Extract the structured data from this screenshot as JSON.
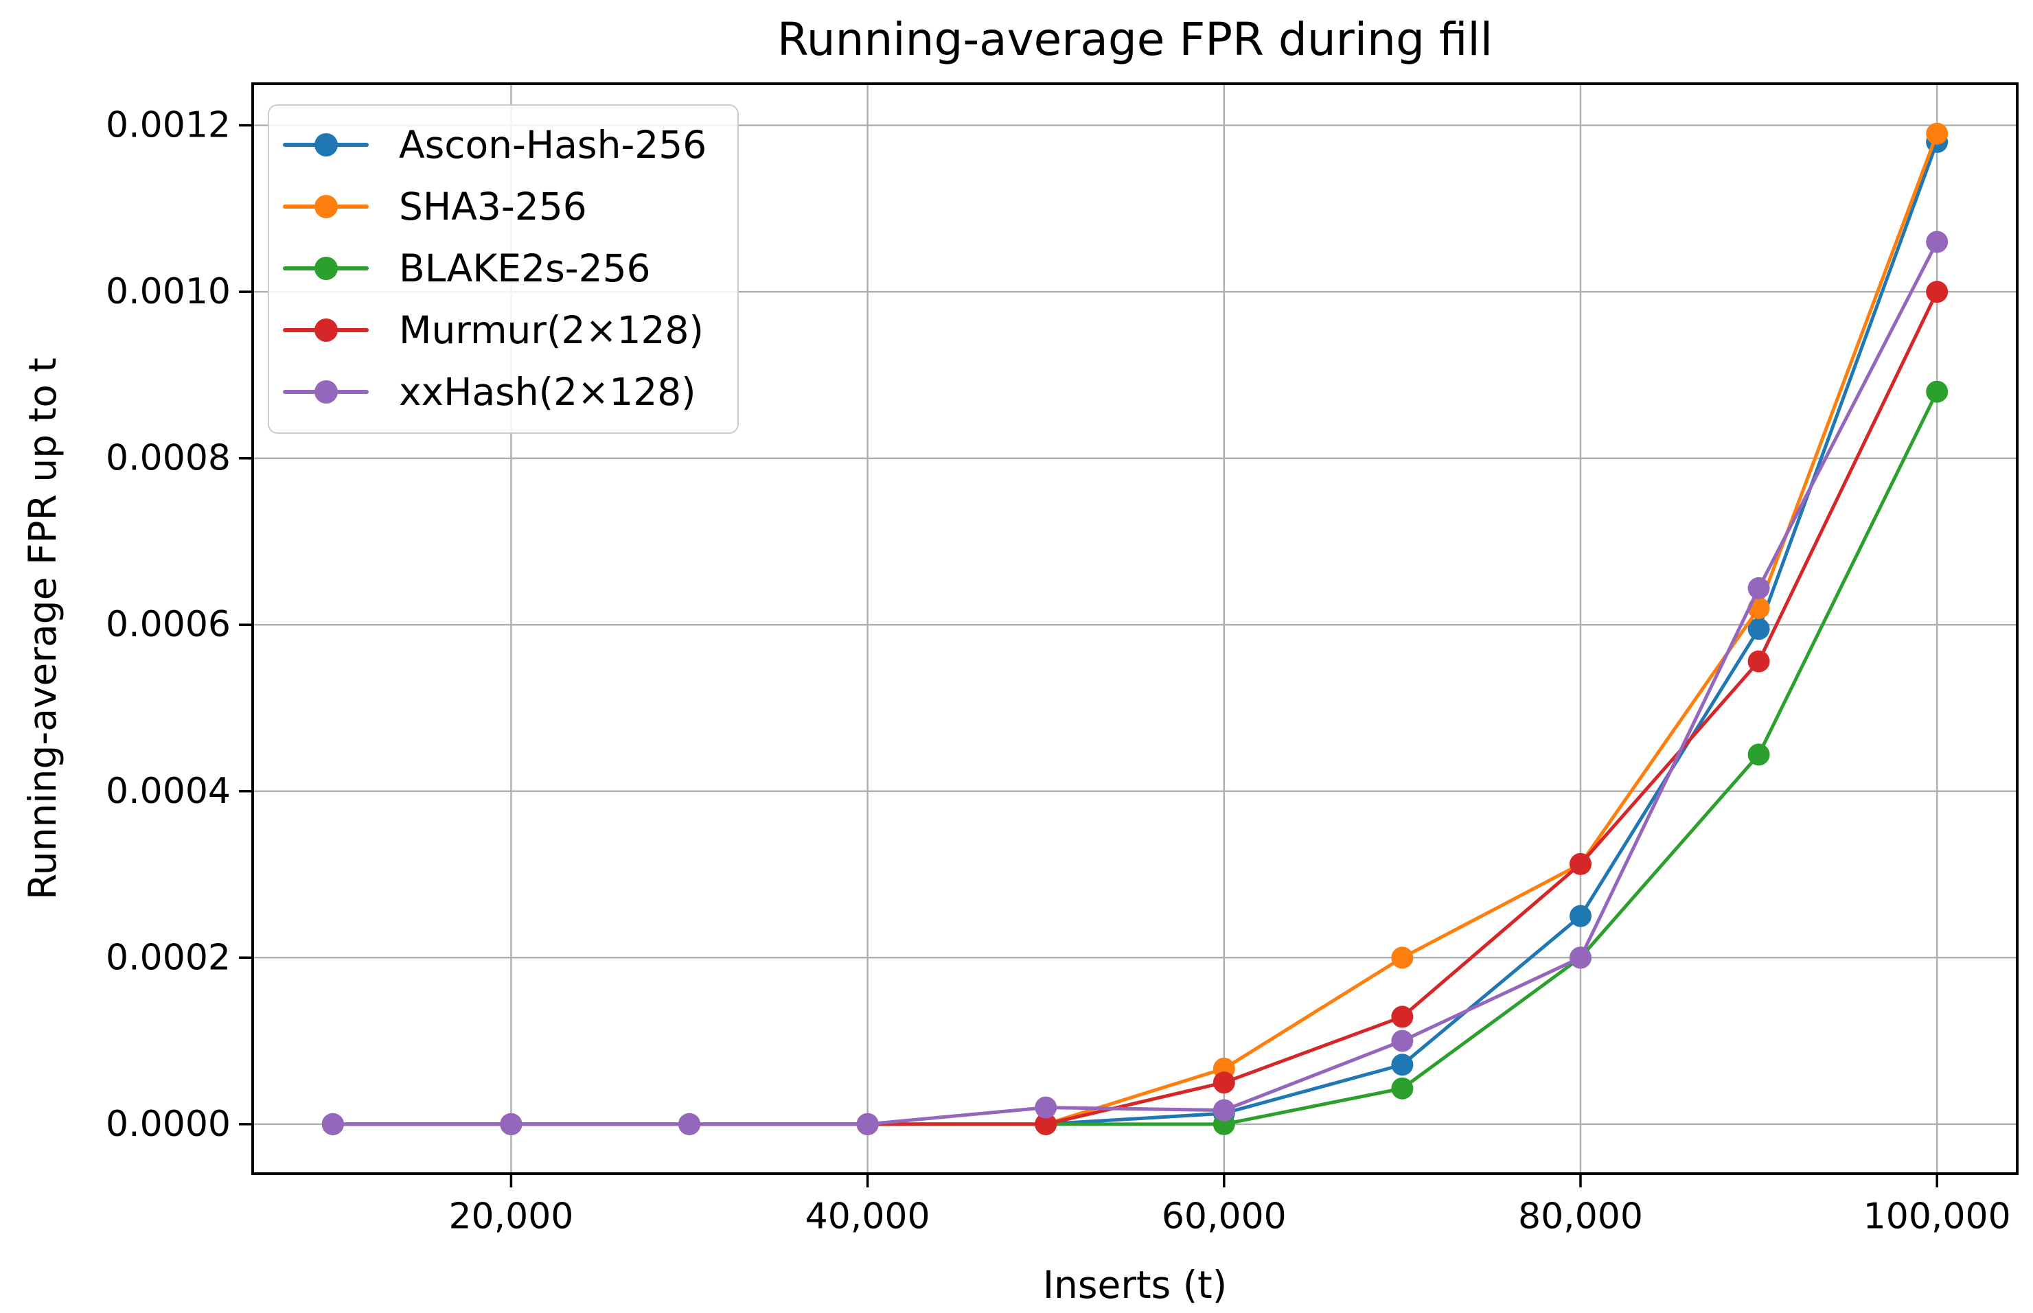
{
  "figure": {
    "title": "Running-average FPR during fill"
  },
  "axes": {
    "xlabel": "Inserts (t)",
    "ylabel": "Running-average FPR up to t"
  },
  "legend": {
    "position": "upper left",
    "items": [
      {
        "label": "Ascon-Hash-256",
        "color": "#1f77b4"
      },
      {
        "label": "SHA3-256",
        "color": "#ff7f0e"
      },
      {
        "label": "BLAKE2s-256",
        "color": "#2ca02c"
      },
      {
        "label": "Murmur(2×128)",
        "color": "#d62728"
      },
      {
        "label": "xxHash(2×128)",
        "color": "#9467bd"
      }
    ]
  },
  "chart_data": {
    "type": "line",
    "title": "Running-average FPR during fill",
    "xlabel": "Inserts (t)",
    "ylabel": "Running-average FPR up to t",
    "x": [
      10000,
      20000,
      30000,
      40000,
      50000,
      60000,
      70000,
      80000,
      90000,
      100000
    ],
    "series": [
      {
        "name": "Ascon-Hash-256",
        "color": "#1f77b4",
        "values": [
          0,
          0,
          0,
          0,
          0,
          1.3e-05,
          7.14e-05,
          0.00025,
          0.000595,
          0.00118
        ]
      },
      {
        "name": "SHA3-256",
        "color": "#ff7f0e",
        "values": [
          0,
          0,
          0,
          0,
          0,
          6.67e-05,
          0.0002,
          0.0003125,
          0.00062,
          0.00119
        ]
      },
      {
        "name": "BLAKE2s-256",
        "color": "#2ca02c",
        "values": [
          0,
          0,
          0,
          0,
          0,
          0,
          4.29e-05,
          0.0002,
          0.000444,
          0.00088
        ]
      },
      {
        "name": "Murmur(2×128)",
        "color": "#d62728",
        "values": [
          0,
          0,
          0,
          0,
          0,
          5e-05,
          0.000129,
          0.0003125,
          0.000556,
          0.001
        ]
      },
      {
        "name": "xxHash(2×128)",
        "color": "#9467bd",
        "values": [
          0,
          0,
          0,
          0,
          2e-05,
          1.67e-05,
          0.0001,
          0.0002,
          0.000644,
          0.00106
        ]
      }
    ],
    "xlim": [
      5500,
      104500
    ],
    "ylim": [
      -5.95e-05,
      0.00125
    ],
    "xticks": {
      "values": [
        20000,
        40000,
        60000,
        80000,
        100000
      ],
      "labels": [
        "20,000",
        "40,000",
        "60,000",
        "80,000",
        "100,000"
      ]
    },
    "yticks": {
      "values": [
        0.0,
        0.0002,
        0.0004,
        0.0006,
        0.0008,
        0.001,
        0.0012
      ],
      "labels": [
        "0.0000",
        "0.0002",
        "0.0004",
        "0.0006",
        "0.0008",
        "0.0010",
        "0.0012"
      ]
    },
    "grid": true,
    "grid_color": "#b0b0b0",
    "spine_color": "#000000",
    "legend_position": "upper left",
    "marker": "o",
    "marker_radius": 16,
    "line_width": 5
  }
}
